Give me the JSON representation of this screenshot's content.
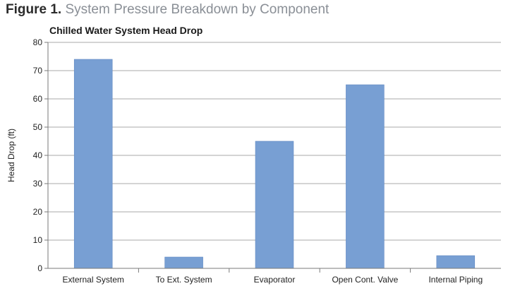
{
  "figure": {
    "label": "Figure 1.",
    "caption": "System Pressure Breakdown by Component"
  },
  "colors": {
    "bar": "#789fd3",
    "bar_edge": "#6189c2",
    "grid": "#a9a9a9",
    "axis": "#7a7a7a",
    "text": "#222222"
  },
  "chart_data": {
    "type": "bar",
    "title": "Chilled Water System Head Drop",
    "xlabel": "",
    "ylabel": "Head Drop (ft)",
    "ylim": [
      0,
      80
    ],
    "yticks": [
      0,
      10,
      20,
      30,
      40,
      50,
      60,
      70,
      80
    ],
    "grid": true,
    "categories": [
      "External System",
      "To Ext. System",
      "Evaporator",
      "Open Cont. Valve",
      "Internal Piping"
    ],
    "values": [
      74,
      4,
      45,
      65,
      4.5
    ]
  }
}
